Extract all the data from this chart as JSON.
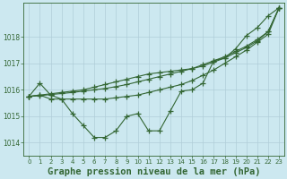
{
  "background_color": "#cce8f0",
  "plot_bg_color": "#cce8f0",
  "grid_color": "#b0cdd8",
  "line_color": "#336633",
  "marker_color": "#336633",
  "xlabel": "Graphe pression niveau de la mer (hPa)",
  "xlabel_fontsize": 7.5,
  "ylim": [
    1013.5,
    1019.3
  ],
  "xlim": [
    -0.5,
    23.5
  ],
  "yticks": [
    1014,
    1015,
    1016,
    1017,
    1018
  ],
  "xticks": [
    0,
    1,
    2,
    3,
    4,
    5,
    6,
    7,
    8,
    9,
    10,
    11,
    12,
    13,
    14,
    15,
    16,
    17,
    18,
    19,
    20,
    21,
    22,
    23
  ],
  "series1": [
    1015.75,
    1016.25,
    1015.8,
    1015.65,
    1015.1,
    1014.65,
    1014.2,
    1014.2,
    1014.45,
    1015.0,
    1015.1,
    1014.45,
    1014.45,
    1015.2,
    1015.95,
    1016.0,
    1016.25,
    1017.1,
    1017.2,
    1017.55,
    1018.05,
    1018.35,
    1018.8,
    1019.1
  ],
  "series2": [
    1015.75,
    1015.8,
    1015.65,
    1015.65,
    1015.65,
    1015.65,
    1015.65,
    1015.65,
    1015.7,
    1015.75,
    1015.8,
    1015.9,
    1016.0,
    1016.1,
    1016.2,
    1016.35,
    1016.55,
    1016.75,
    1017.0,
    1017.25,
    1017.5,
    1017.8,
    1018.1,
    1019.1
  ],
  "series3": [
    1015.75,
    1015.78,
    1015.82,
    1015.86,
    1015.9,
    1015.95,
    1016.0,
    1016.05,
    1016.12,
    1016.2,
    1016.3,
    1016.4,
    1016.5,
    1016.6,
    1016.7,
    1016.8,
    1016.95,
    1017.1,
    1017.25,
    1017.45,
    1017.65,
    1017.9,
    1018.2,
    1019.1
  ],
  "series4": [
    1015.75,
    1015.8,
    1015.85,
    1015.9,
    1015.95,
    1016.0,
    1016.1,
    1016.2,
    1016.3,
    1016.4,
    1016.5,
    1016.6,
    1016.65,
    1016.7,
    1016.75,
    1016.8,
    1016.9,
    1017.05,
    1017.2,
    1017.4,
    1017.6,
    1017.85,
    1018.2,
    1019.1
  ],
  "lw": 0.8,
  "ms": 4.0
}
